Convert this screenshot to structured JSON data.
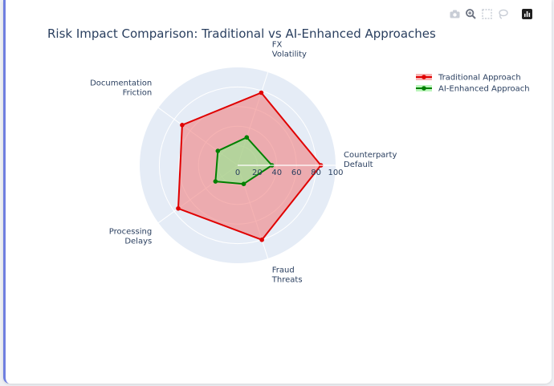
{
  "toolbar": {
    "icons": [
      "camera-icon",
      "zoom-icon",
      "select-box-icon",
      "lasso-icon",
      "plotly-logo-icon"
    ]
  },
  "colors": {
    "traditional": "#e00000",
    "traditional_fill": "rgba(240,128,128,0.6)",
    "ai": "#008000",
    "ai_fill": "rgba(144,238,144,0.6)",
    "polar_bg": "#e5ecf6"
  },
  "chart_data": {
    "type": "radar",
    "title": "Risk Impact Comparison: Traditional vs AI-Enhanced Approaches",
    "categories": [
      [
        "Counterparty",
        "Default"
      ],
      [
        "FX",
        "Volatility"
      ],
      [
        "Documentation",
        "Friction"
      ],
      [
        "Processing",
        "Delays"
      ],
      [
        "Fraud",
        "Threats"
      ]
    ],
    "radial_range": [
      0,
      100
    ],
    "radial_ticks": [
      "0",
      "20",
      "40",
      "60",
      "80",
      "100"
    ],
    "series": [
      {
        "name": "Traditional Approach",
        "values": [
          85,
          78,
          70,
          75,
          80
        ]
      },
      {
        "name": "AI-Enhanced Approach",
        "values": [
          35,
          30,
          25,
          28,
          20
        ]
      }
    ],
    "legend_position": "top-right",
    "grid": true
  }
}
